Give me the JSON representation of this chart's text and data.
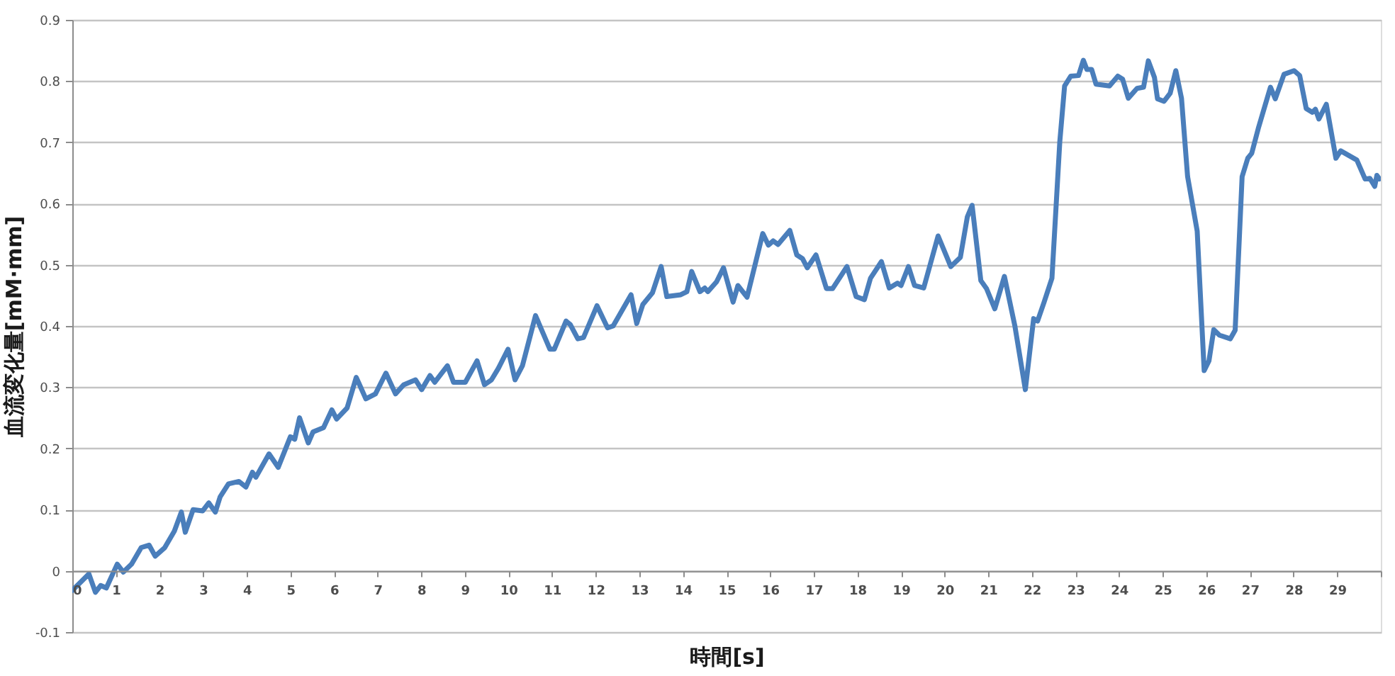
{
  "chart_data": {
    "type": "line",
    "xlabel": "時間[s]",
    "ylabel": "血流変化量[mM·mm]",
    "x": [
      0,
      0.38,
      0.53,
      0.65,
      0.78,
      1.03,
      1.17,
      1.36,
      1.58,
      1.76,
      1.9,
      2.12,
      2.34,
      2.5,
      2.59,
      2.77,
      2.99,
      3.13,
      3.28,
      3.39,
      3.58,
      3.82,
      3.98,
      4.13,
      4.21,
      4.51,
      4.72,
      5.0,
      5.1,
      5.21,
      5.41,
      5.52,
      5.76,
      5.95,
      6.06,
      6.3,
      6.51,
      6.73,
      6.95,
      7.19,
      7.41,
      7.6,
      7.87,
      8.01,
      8.2,
      8.31,
      8.6,
      8.74,
      9.01,
      9.28,
      9.45,
      9.61,
      9.77,
      9.99,
      10.15,
      10.32,
      10.62,
      10.95,
      11.05,
      11.32,
      11.42,
      11.59,
      11.72,
      12.03,
      12.27,
      12.4,
      12.81,
      12.94,
      13.08,
      13.3,
      13.5,
      13.63,
      13.95,
      14.09,
      14.2,
      14.39,
      14.5,
      14.57,
      14.77,
      14.93,
      15.15,
      15.26,
      15.47,
      15.83,
      15.96,
      16.07,
      16.18,
      16.45,
      16.61,
      16.74,
      16.85,
      17.05,
      17.29,
      17.43,
      17.65,
      17.76,
      17.97,
      18.16,
      18.3,
      18.55,
      18.73,
      18.92,
      19.0,
      19.17,
      19.31,
      19.52,
      19.85,
      20.14,
      20.36,
      20.52,
      20.63,
      20.83,
      20.96,
      21.15,
      21.37,
      21.61,
      21.85,
      22.04,
      22.13,
      22.28,
      22.46,
      22.64,
      22.75,
      22.89,
      23.07,
      23.18,
      23.26,
      23.37,
      23.47,
      23.78,
      23.97,
      24.08,
      24.21,
      24.41,
      24.56,
      24.67,
      24.81,
      24.88,
      25.03,
      25.17,
      25.3,
      25.43,
      25.57,
      25.79,
      25.95,
      26.06,
      26.17,
      26.3,
      26.55,
      26.66,
      26.82,
      26.95,
      27.04,
      27.2,
      27.47,
      27.58,
      27.78,
      28.01,
      28.14,
      28.29,
      28.43,
      28.5,
      28.58,
      28.75,
      28.97,
      29.08,
      29.45,
      29.64,
      29.75,
      29.86,
      29.91,
      29.97
    ],
    "series": [
      {
        "color": "#4a7ebb",
        "values": [
          -0.032,
          -0.005,
          -0.035,
          -0.024,
          -0.028,
          0.011,
          -0.002,
          0.011,
          0.038,
          0.042,
          0.024,
          0.038,
          0.065,
          0.096,
          0.063,
          0.1,
          0.098,
          0.111,
          0.096,
          0.121,
          0.142,
          0.146,
          0.137,
          0.161,
          0.153,
          0.191,
          0.169,
          0.219,
          0.215,
          0.25,
          0.209,
          0.227,
          0.234,
          0.263,
          0.248,
          0.266,
          0.316,
          0.281,
          0.289,
          0.323,
          0.289,
          0.304,
          0.312,
          0.296,
          0.319,
          0.308,
          0.335,
          0.308,
          0.308,
          0.343,
          0.304,
          0.312,
          0.331,
          0.362,
          0.312,
          0.335,
          0.417,
          0.362,
          0.362,
          0.408,
          0.402,
          0.379,
          0.381,
          0.433,
          0.397,
          0.4,
          0.451,
          0.404,
          0.435,
          0.454,
          0.497,
          0.448,
          0.451,
          0.456,
          0.489,
          0.456,
          0.462,
          0.456,
          0.472,
          0.495,
          0.439,
          0.466,
          0.447,
          0.551,
          0.532,
          0.539,
          0.533,
          0.556,
          0.516,
          0.51,
          0.495,
          0.516,
          0.461,
          0.461,
          0.485,
          0.497,
          0.448,
          0.443,
          0.478,
          0.505,
          0.462,
          0.47,
          0.466,
          0.497,
          0.466,
          0.462,
          0.547,
          0.497,
          0.512,
          0.578,
          0.597,
          0.474,
          0.461,
          0.428,
          0.481,
          0.4,
          0.296,
          0.412,
          0.408,
          0.439,
          0.478,
          0.701,
          0.792,
          0.808,
          0.809,
          0.834,
          0.819,
          0.819,
          0.795,
          0.792,
          0.808,
          0.803,
          0.772,
          0.788,
          0.79,
          0.833,
          0.806,
          0.771,
          0.767,
          0.78,
          0.817,
          0.772,
          0.644,
          0.555,
          0.327,
          0.343,
          0.394,
          0.385,
          0.379,
          0.393,
          0.644,
          0.674,
          0.682,
          0.725,
          0.79,
          0.771,
          0.811,
          0.817,
          0.809,
          0.755,
          0.749,
          0.754,
          0.738,
          0.762,
          0.674,
          0.686,
          0.671,
          0.64,
          0.641,
          0.628,
          0.646,
          0.64
        ]
      }
    ],
    "xlim": [
      0,
      30
    ],
    "xticks": [
      0,
      1,
      2,
      3,
      4,
      5,
      6,
      7,
      8,
      9,
      10,
      11,
      12,
      13,
      14,
      15,
      16,
      17,
      18,
      19,
      20,
      21,
      22,
      23,
      24,
      25,
      26,
      27,
      28,
      29,
      {
        "value": 30,
        "label": null
      }
    ],
    "ylim": [
      -0.1,
      0.9
    ],
    "yticks": [
      -0.1,
      0,
      0.1,
      0.2,
      0.3,
      0.4,
      0.5,
      0.6,
      0.7,
      0.8,
      0.9
    ],
    "grid": "y",
    "line_style": "solid"
  }
}
